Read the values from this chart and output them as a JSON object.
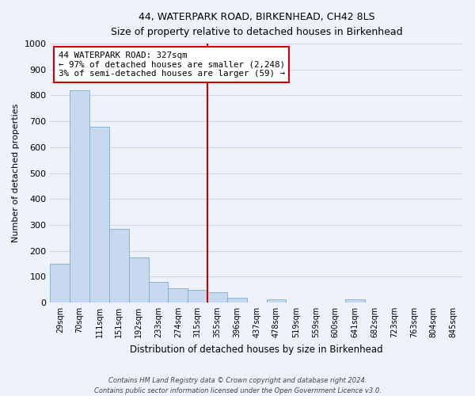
{
  "title": "44, WATERPARK ROAD, BIRKENHEAD, CH42 8LS",
  "subtitle": "Size of property relative to detached houses in Birkenhead",
  "xlabel": "Distribution of detached houses by size in Birkenhead",
  "ylabel": "Number of detached properties",
  "bar_labels": [
    "29sqm",
    "70sqm",
    "111sqm",
    "151sqm",
    "192sqm",
    "233sqm",
    "274sqm",
    "315sqm",
    "355sqm",
    "396sqm",
    "437sqm",
    "478sqm",
    "519sqm",
    "559sqm",
    "600sqm",
    "641sqm",
    "682sqm",
    "723sqm",
    "763sqm",
    "804sqm",
    "845sqm"
  ],
  "bar_values": [
    150,
    820,
    680,
    285,
    175,
    78,
    55,
    48,
    40,
    18,
    0,
    12,
    0,
    0,
    0,
    12,
    0,
    0,
    0,
    0,
    0
  ],
  "bar_color": "#c8d8ee",
  "bar_edge_color": "#7aaed0",
  "vline_x": 7.5,
  "vline_color": "#cc0000",
  "annotation_title": "44 WATERPARK ROAD: 327sqm",
  "annotation_line1": "← 97% of detached houses are smaller (2,248)",
  "annotation_line2": "3% of semi-detached houses are larger (59) →",
  "annotation_box_color": "#ffffff",
  "annotation_box_edge": "#cc0000",
  "ylim": [
    0,
    1000
  ],
  "yticks": [
    0,
    100,
    200,
    300,
    400,
    500,
    600,
    700,
    800,
    900,
    1000
  ],
  "footer_line1": "Contains HM Land Registry data © Crown copyright and database right 2024.",
  "footer_line2": "Contains public sector information licensed under the Open Government Licence v3.0.",
  "background_color": "#eef2fb",
  "grid_color": "#d0d8e8"
}
